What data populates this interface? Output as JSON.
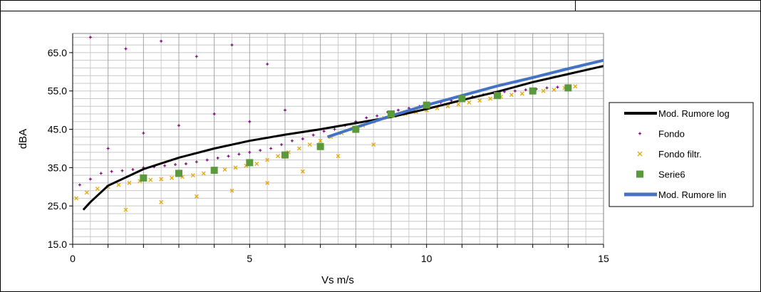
{
  "chart_data": {
    "type": "scatter",
    "title": "",
    "xlabel": "Vs m/s",
    "ylabel": "dBA",
    "xlim": [
      0,
      15
    ],
    "ylim": [
      15,
      70
    ],
    "x_ticks": [
      "0",
      "5",
      "10",
      "15"
    ],
    "y_ticks": [
      "15.0",
      "25.0",
      "35.0",
      "45.0",
      "55.0",
      "65.0"
    ],
    "y_tick_values": [
      15,
      25,
      35,
      45,
      55,
      65
    ],
    "x_tick_values": [
      0,
      5,
      10,
      15
    ],
    "grid": true,
    "legend_position": "right",
    "series": [
      {
        "name": "Mod. Rumore log",
        "kind": "line",
        "color": "#000000",
        "x": [
          0.3,
          0.5,
          1,
          2,
          3,
          4,
          5,
          6,
          7,
          8,
          9,
          10,
          11,
          12,
          13,
          14,
          15
        ],
        "y": [
          24.0,
          26.0,
          30.3,
          34.6,
          37.6,
          40.0,
          42.0,
          43.6,
          45.0,
          46.6,
          48.2,
          50.3,
          52.6,
          54.8,
          57.3,
          59.4,
          61.5
        ]
      },
      {
        "name": "Fondo",
        "kind": "points",
        "marker": "plus",
        "color": "#800080",
        "x": [
          0.2,
          0.5,
          0.8,
          1.1,
          1.4,
          1.7,
          2.0,
          2.3,
          2.6,
          2.9,
          3.2,
          3.5,
          3.8,
          4.1,
          4.4,
          4.7,
          5.0,
          5.3,
          5.6,
          5.9,
          6.2,
          6.5,
          6.8,
          7.1,
          7.4,
          7.7,
          8.0,
          8.3,
          8.6,
          8.9,
          9.2,
          9.5,
          9.8,
          10.1,
          10.4,
          10.7,
          11.0,
          11.3,
          11.6,
          11.9,
          12.2,
          12.5,
          12.8,
          13.1,
          13.4,
          13.7,
          1.0,
          2.0,
          3.0,
          4.0,
          5.0,
          6.0,
          0.5,
          1.5,
          2.5,
          3.5,
          4.5,
          5.5
        ],
        "y": [
          30.5,
          32.0,
          33.5,
          34.0,
          34.2,
          34.5,
          35.0,
          35.2,
          35.5,
          35.8,
          36.0,
          36.5,
          37.0,
          37.5,
          38.0,
          38.5,
          39.0,
          39.5,
          40.0,
          41.0,
          42.0,
          42.5,
          43.5,
          44.5,
          45.0,
          46.0,
          47.0,
          48.0,
          48.5,
          49.5,
          50.0,
          50.5,
          51.0,
          51.5,
          52.0,
          52.5,
          53.0,
          53.5,
          54.0,
          54.5,
          54.8,
          55.0,
          55.3,
          55.5,
          55.8,
          56.0,
          40.0,
          44.0,
          46.0,
          49.0,
          47.0,
          50.0,
          69.0,
          66.0,
          68.0,
          64.0,
          67.0,
          62.0
        ]
      },
      {
        "name": "Fondo filtr.",
        "kind": "points",
        "marker": "x",
        "color": "#e5a800",
        "x": [
          0.1,
          0.4,
          0.7,
          1.0,
          1.3,
          1.6,
          1.9,
          2.2,
          2.5,
          2.8,
          3.1,
          3.4,
          3.7,
          4.0,
          4.3,
          4.6,
          4.9,
          5.2,
          5.5,
          5.8,
          6.1,
          6.4,
          6.7,
          7.0,
          7.3,
          7.6,
          7.9,
          8.2,
          8.5,
          8.8,
          9.1,
          9.4,
          9.7,
          10.0,
          10.3,
          10.6,
          10.9,
          11.2,
          11.5,
          11.8,
          12.1,
          12.4,
          12.7,
          13.0,
          13.3,
          13.6,
          13.9,
          14.2,
          1.5,
          2.5,
          3.5,
          4.5,
          5.5,
          6.5,
          7.5,
          8.5
        ],
        "y": [
          27.0,
          28.5,
          29.5,
          30.0,
          30.5,
          31.0,
          31.5,
          31.8,
          32.0,
          32.3,
          32.6,
          33.0,
          33.5,
          34.0,
          34.5,
          35.0,
          35.5,
          36.0,
          37.0,
          38.0,
          39.0,
          40.0,
          41.0,
          42.0,
          43.0,
          44.0,
          45.0,
          46.0,
          47.0,
          48.0,
          48.5,
          49.0,
          49.5,
          50.0,
          50.5,
          51.0,
          51.5,
          52.0,
          52.5,
          53.0,
          53.5,
          54.0,
          54.3,
          54.6,
          55.0,
          55.3,
          55.8,
          56.2,
          24.0,
          26.0,
          27.5,
          29.0,
          31.0,
          34.0,
          38.0,
          41.0
        ]
      },
      {
        "name": "Serie6",
        "kind": "points",
        "marker": "square",
        "color": "#5b9a3c",
        "x": [
          2,
          3,
          4,
          5,
          6,
          7,
          8,
          9,
          10,
          11,
          12,
          13,
          14
        ],
        "y": [
          32.3,
          33.5,
          34.3,
          36.3,
          38.3,
          40.5,
          45.0,
          49.0,
          51.3,
          53.0,
          53.8,
          55.0,
          55.8
        ]
      },
      {
        "name": "Mod. Rumore lin",
        "kind": "line",
        "color": "#4472c4",
        "x": [
          7.2,
          8,
          9,
          10,
          11,
          12,
          13,
          14,
          15
        ],
        "y": [
          43.0,
          45.5,
          48.5,
          51.3,
          53.8,
          56.3,
          58.5,
          60.8,
          63.0
        ]
      }
    ]
  }
}
